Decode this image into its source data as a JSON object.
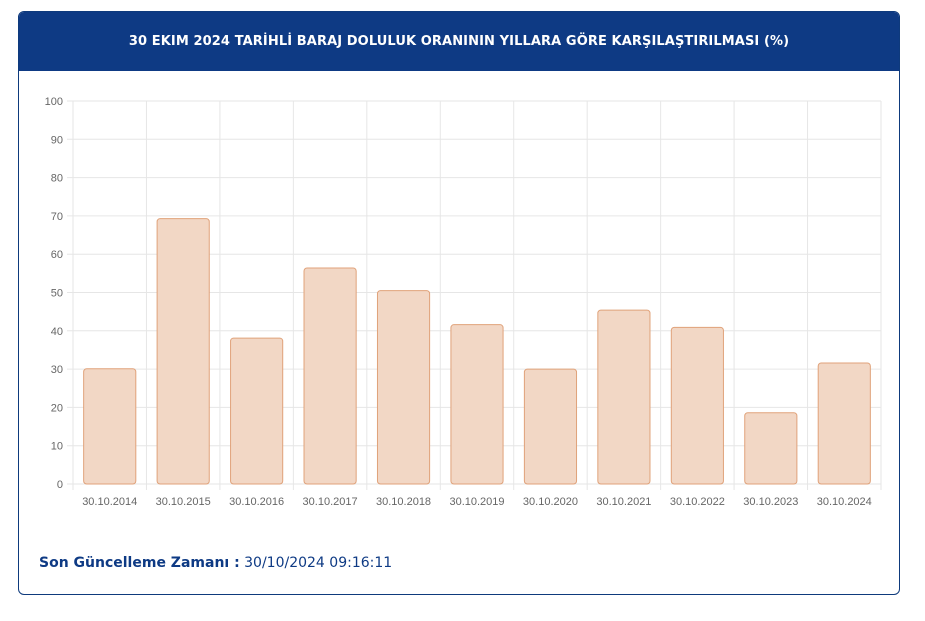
{
  "header": {
    "title": "30 EKIM 2024 TARİHLİ BARAJ DOLULUK ORANININ YILLARA GÖRE KARŞILAŞTIRILMASI (%)"
  },
  "footer": {
    "label": "Son Güncelleme Zamanı :",
    "value": "30/10/2024 09:16:11"
  },
  "colors": {
    "header_bg": "#0e3a84",
    "bar_fill": "#f2d7c5",
    "bar_stroke": "#e0a27a",
    "grid": "#e6e6e6"
  },
  "chart_data": {
    "type": "bar",
    "title": "30 EKIM 2024 TARİHLİ BARAJ DOLULUK ORANININ YILLARA GÖRE KARŞILAŞTIRILMASI (%)",
    "categories": [
      "30.10.2014",
      "30.10.2015",
      "30.10.2016",
      "30.10.2017",
      "30.10.2018",
      "30.10.2019",
      "30.10.2020",
      "30.10.2021",
      "30.10.2022",
      "30.10.2023",
      "30.10.2024"
    ],
    "values": [
      30.1,
      69.3,
      38.1,
      56.4,
      50.5,
      41.6,
      30.0,
      45.4,
      40.9,
      18.6,
      31.6
    ],
    "ylim": [
      0,
      100
    ],
    "yticks": [
      0,
      10,
      20,
      30,
      40,
      50,
      60,
      70,
      80,
      90,
      100
    ],
    "grid": true,
    "xlabel": "",
    "ylabel": ""
  }
}
